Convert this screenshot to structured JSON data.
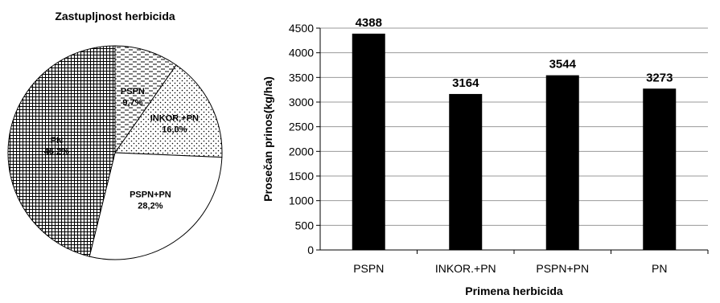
{
  "chart_data": [
    {
      "type": "pie",
      "title": "Zastupljnost herbicida",
      "slices": [
        {
          "label": "PSPN",
          "value_label": "9,7%",
          "value": 9.7,
          "pattern": "dash"
        },
        {
          "label": "INKOR.+PN",
          "value_label": "16,0%",
          "value": 16.0,
          "pattern": "dots"
        },
        {
          "label": "PSPN+PN",
          "value_label": "28,2%",
          "value": 28.2,
          "pattern": "white"
        },
        {
          "label": "PN",
          "value_label": "46,2%",
          "value": 46.2,
          "pattern": "grid"
        }
      ]
    },
    {
      "type": "bar",
      "title": "",
      "xlabel": "Primena herbicida",
      "ylabel": "Prosečan prinos(kg/ha)",
      "categories": [
        "PSPN",
        "INKOR.+PN",
        "PSPN+PN",
        "PN"
      ],
      "values": [
        4388,
        3164,
        3544,
        3273
      ],
      "value_labels": [
        "4388",
        "3164",
        "3544",
        "3273"
      ],
      "ylim": [
        0,
        4500
      ],
      "yticks": [
        0,
        500,
        1000,
        1500,
        2000,
        2500,
        3000,
        3500,
        4000,
        4500
      ],
      "grid": true,
      "bar_color": "#000000"
    }
  ]
}
